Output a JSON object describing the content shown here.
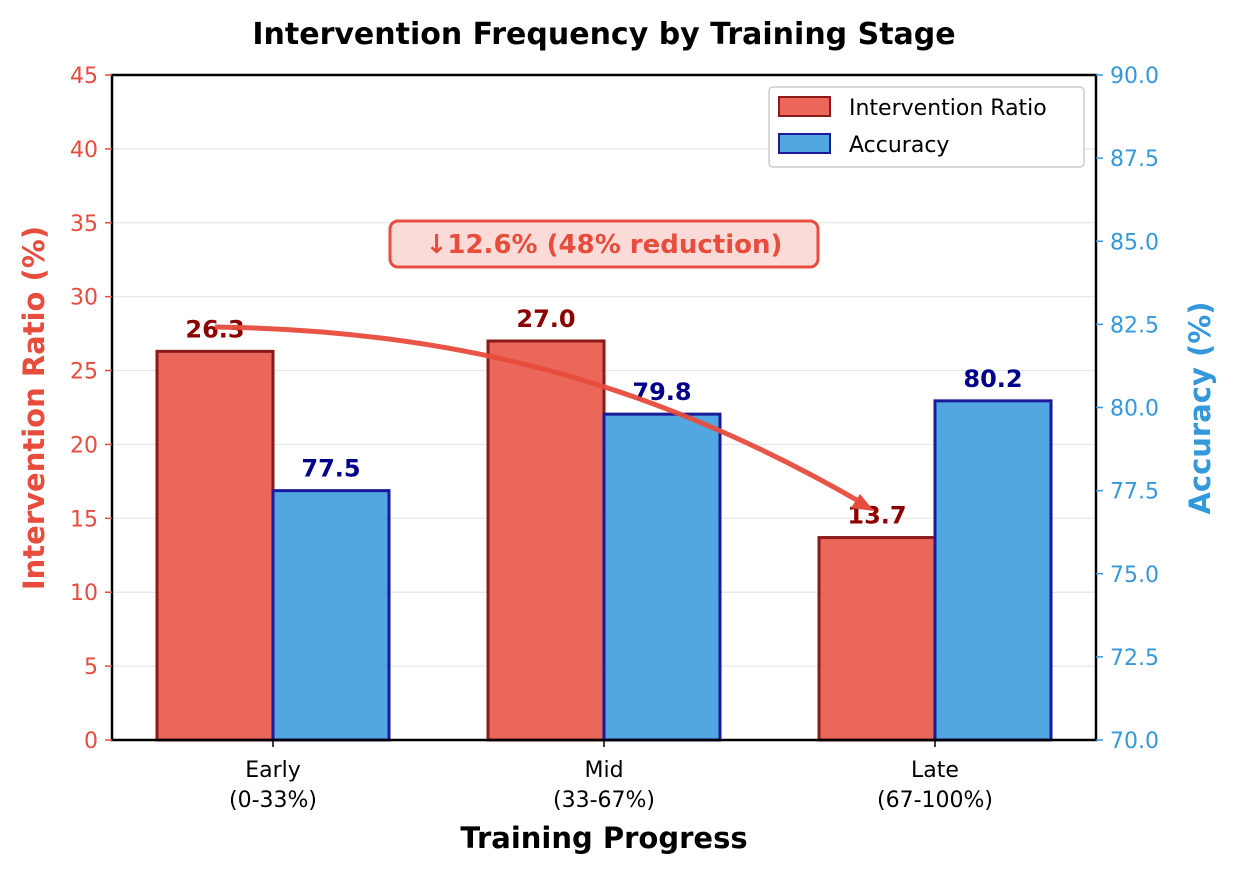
{
  "chart_data": {
    "type": "bar",
    "title": "Intervention Frequency by Training Stage",
    "xlabel": "Training Progress",
    "ylabel": "Intervention Ratio (%)",
    "ylabel_right": "Accuracy (%)",
    "categories": [
      "Early\n(0-33%)",
      "Mid\n(33-67%)",
      "Late\n(67-100%)"
    ],
    "ylim": [
      0,
      45
    ],
    "ylim_right": [
      70,
      90
    ],
    "yticks": [
      0,
      5,
      10,
      15,
      20,
      25,
      30,
      35,
      40,
      45
    ],
    "yticks_right": [
      "70.0",
      "72.5",
      "75.0",
      "77.5",
      "80.0",
      "82.5",
      "85.0",
      "87.5",
      "90.0"
    ],
    "grid": true,
    "legend_position": "top-right",
    "series": [
      {
        "name": "Intervention Ratio",
        "axis": "left",
        "values": [
          26.3,
          27.0,
          13.7
        ],
        "labels": [
          "26.3",
          "27.0",
          "13.7"
        ],
        "color": "#e74c3c",
        "edge": "#8b1a1a",
        "label_color": "#8b0000"
      },
      {
        "name": "Accuracy",
        "axis": "right",
        "values": [
          77.5,
          79.8,
          80.2
        ],
        "labels": [
          "77.5",
          "79.8",
          "80.2"
        ],
        "color": "#3498db",
        "edge": "#1a1a9a",
        "label_color": "#00008b"
      }
    ],
    "annotation": "↓12.6% (48% reduction)",
    "left_axis_color": "#e74c3c",
    "right_axis_color": "#3498db"
  }
}
